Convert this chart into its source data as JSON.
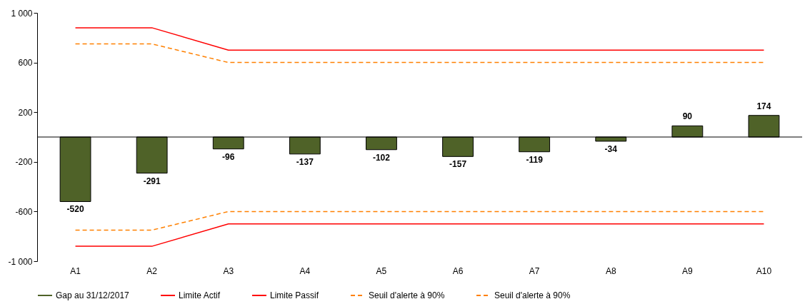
{
  "chart_data": {
    "type": "bar",
    "categories": [
      "A1",
      "A2",
      "A3",
      "A4",
      "A5",
      "A6",
      "A7",
      "A8",
      "A9",
      "A10"
    ],
    "series": [
      {
        "name": "Gap au 31/12/2017",
        "color": "#4f6228",
        "values": [
          -520,
          -291,
          -96,
          -137,
          -102,
          -157,
          -119,
          -34,
          90,
          174
        ],
        "value_labels": [
          "-520",
          "-291",
          "-96",
          "-137",
          "-102",
          "-157",
          "-119",
          "-34",
          "90",
          "174"
        ]
      },
      {
        "name": "Limite Actif",
        "type": "line",
        "color": "#ff0000",
        "line_style": "solid",
        "values": [
          880,
          880,
          700,
          700,
          700,
          700,
          700,
          700,
          700,
          700
        ]
      },
      {
        "name": "Limite Passif",
        "type": "line",
        "color": "#ff0000",
        "line_style": "solid",
        "values": [
          -880,
          -880,
          -700,
          -700,
          -700,
          -700,
          -700,
          -700,
          -700,
          -700
        ]
      },
      {
        "name": "Seuil d'alerte à 90%",
        "type": "line",
        "color": "#ff8000",
        "line_style": "dashed",
        "values": [
          750,
          750,
          600,
          600,
          600,
          600,
          600,
          600,
          600,
          600
        ]
      },
      {
        "name": "Seuil d'alerte à 90%",
        "type": "line",
        "color": "#ff8000",
        "line_style": "dashed",
        "values": [
          -750,
          -750,
          -600,
          -600,
          -600,
          -600,
          -600,
          -600,
          -600,
          -600
        ]
      }
    ],
    "ylim": [
      -1000,
      1000
    ],
    "yticks": [
      {
        "value": 1000,
        "label": "1 000"
      },
      600,
      200,
      -200,
      -600,
      {
        "value": -1000,
        "label": "-1 000"
      }
    ],
    "grid": false,
    "legend": "bottom"
  }
}
